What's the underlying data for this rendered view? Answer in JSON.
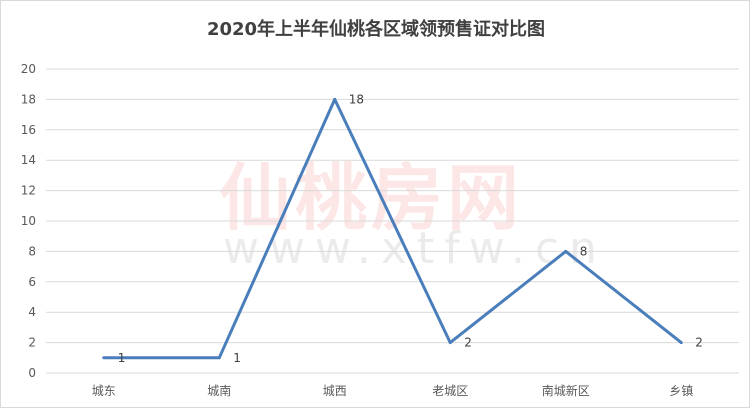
{
  "chart_data": {
    "type": "line",
    "title": "2020年上半年仙桃各区域领预售证对比图",
    "categories": [
      "城东",
      "城南",
      "城西",
      "老城区",
      "南城新区",
      "乡镇"
    ],
    "values": [
      1,
      1,
      18,
      2,
      8,
      2
    ],
    "data_labels": [
      "1",
      "1",
      "18",
      "2",
      "8",
      "2"
    ],
    "ylim": [
      0,
      20
    ],
    "yticks": [
      "0",
      "2",
      "4",
      "6",
      "8",
      "10",
      "12",
      "14",
      "16",
      "18",
      "20"
    ],
    "grid": true,
    "legend": "none",
    "line_color": "#4a7ebb",
    "watermark": {
      "text": "仙桃房网",
      "url": "www.xtfw.cn"
    }
  }
}
